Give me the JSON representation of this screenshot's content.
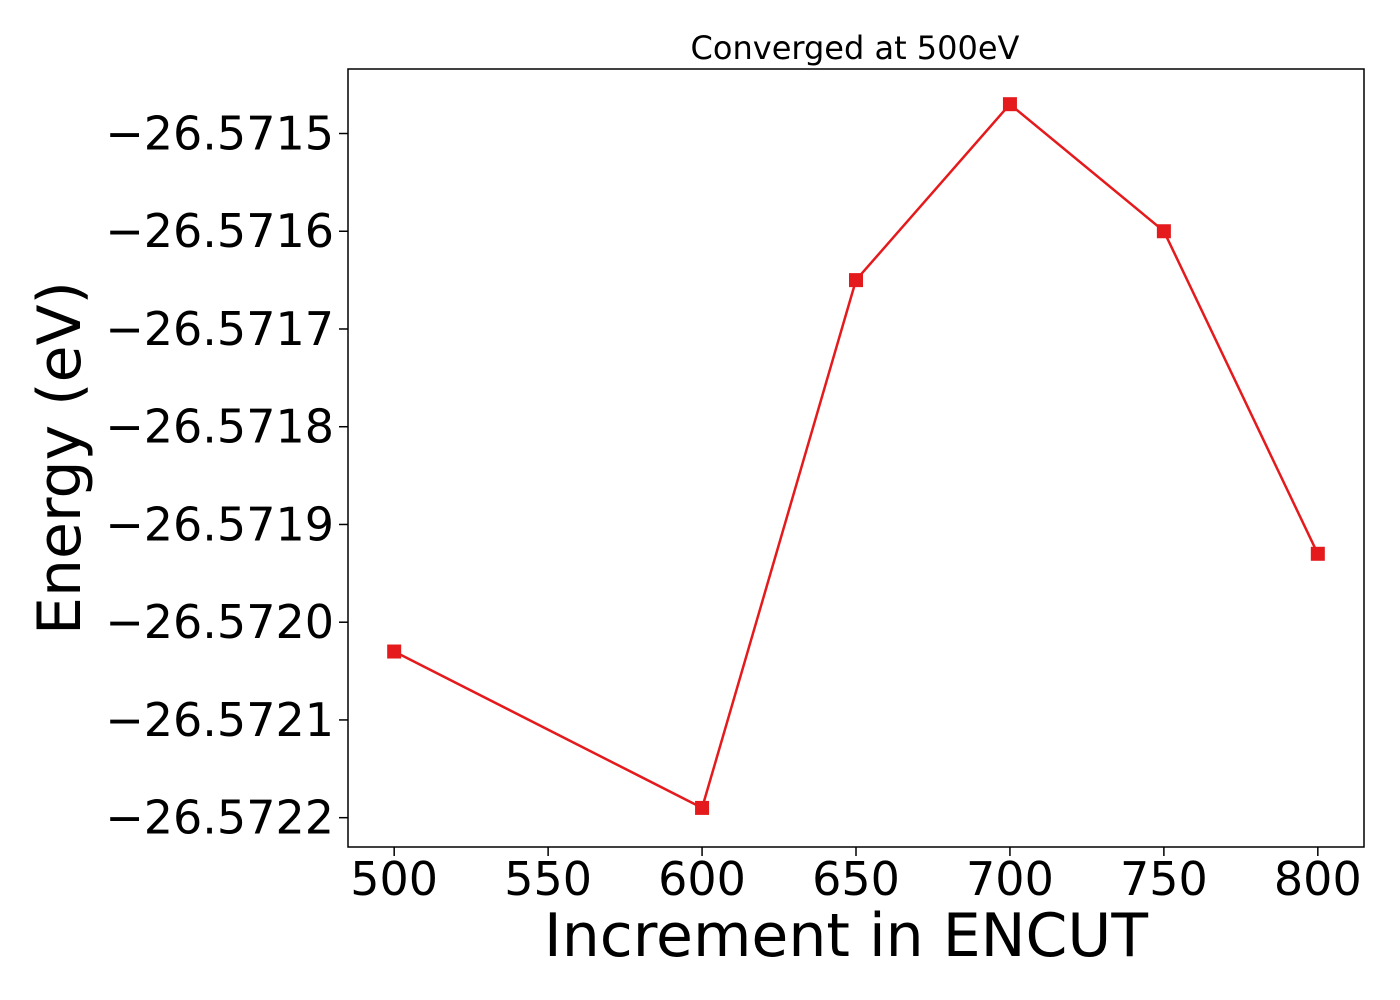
{
  "chart_data": {
    "type": "line",
    "title": "Converged at 500eV",
    "xlabel": "Increment in ENCUT",
    "ylabel": "Energy (eV)",
    "x": [
      500,
      600,
      650,
      700,
      750,
      800
    ],
    "series": [
      {
        "values": [
          -26.57203,
          -26.57219,
          -26.57165,
          -26.57147,
          -26.5716,
          -26.57193
        ],
        "color": "#e41a1c",
        "marker": "square"
      }
    ],
    "xlim": [
      485,
      815
    ],
    "ylim": [
      -26.57223,
      -26.571434
    ],
    "x_ticks": [
      500,
      550,
      600,
      650,
      700,
      750,
      800
    ],
    "x_tick_labels": [
      "500",
      "550",
      "600",
      "650",
      "700",
      "750",
      "800"
    ],
    "y_ticks": [
      -26.5722,
      -26.5721,
      -26.572,
      -26.5719,
      -26.5718,
      -26.5717,
      -26.5716,
      -26.5715
    ],
    "y_tick_labels": [
      "−26.5722",
      "−26.5721",
      "−26.5720",
      "−26.5719",
      "−26.5718",
      "−26.5717",
      "−26.5716",
      "−26.5715"
    ],
    "grid": false,
    "legend": "none"
  }
}
